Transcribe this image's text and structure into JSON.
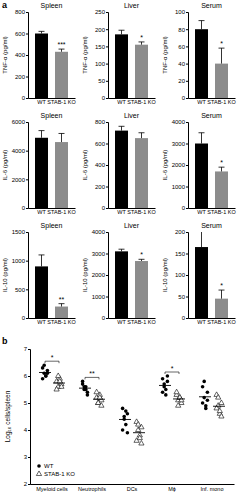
{
  "chart_data": [
    {
      "type": "bar",
      "title": "Spleen",
      "y_label": "TNF-α (pg/ml)",
      "categories": [
        "WT",
        "STAB-1 KO"
      ],
      "values": [
        600,
        430
      ],
      "errors": [
        20,
        25
      ],
      "colors": [
        "#000000",
        "#8c8c8c"
      ],
      "ylim": [
        0,
        800
      ],
      "yticks": [
        0,
        200,
        400,
        600,
        800
      ],
      "annotations": [
        {
          "text": "a"
        },
        {
          "text": "***",
          "category": "STAB-1 KO"
        }
      ]
    },
    {
      "type": "bar",
      "title": "Liver",
      "y_label": "TNF-α (pg/ml)",
      "categories": [
        "WT",
        "STAB-1 KO"
      ],
      "values": [
        185,
        155
      ],
      "errors": [
        12,
        8
      ],
      "colors": [
        "#000000",
        "#8c8c8c"
      ],
      "ylim": [
        0,
        250
      ],
      "yticks": [
        0,
        50,
        100,
        150,
        200,
        250
      ],
      "annotations": [
        {
          "text": "*",
          "category": "STAB-1 KO"
        }
      ]
    },
    {
      "type": "bar",
      "title": "Serum",
      "y_label": "TNF-α (pg/ml)",
      "categories": [
        "WT",
        "STAB-1 KO"
      ],
      "values": [
        80,
        40
      ],
      "errors": [
        10,
        18
      ],
      "colors": [
        "#000000",
        "#8c8c8c"
      ],
      "ylim": [
        0,
        100
      ],
      "yticks": [
        0,
        20,
        40,
        60,
        80,
        100
      ],
      "annotations": [
        {
          "text": "*",
          "category": "STAB-1 KO"
        }
      ]
    },
    {
      "type": "bar",
      "title": "Spleen",
      "y_label": "IL-6 (pg/ml)",
      "categories": [
        "WT",
        "STAB-1 KO"
      ],
      "values": [
        4900,
        4600
      ],
      "errors": [
        500,
        600
      ],
      "colors": [
        "#000000",
        "#8c8c8c"
      ],
      "ylim": [
        0,
        6000
      ],
      "yticks": [
        0,
        2000,
        4000,
        6000
      ],
      "annotations": []
    },
    {
      "type": "bar",
      "title": "Liver",
      "y_label": "IL-6 (pg/ml)",
      "categories": [
        "WT",
        "STAB-1 KO"
      ],
      "values": [
        720,
        650
      ],
      "errors": [
        40,
        50
      ],
      "colors": [
        "#000000",
        "#8c8c8c"
      ],
      "ylim": [
        0,
        800
      ],
      "yticks": [
        0,
        200,
        400,
        600,
        800
      ],
      "annotations": []
    },
    {
      "type": "bar",
      "title": "Serum",
      "y_label": "IL-6 (pg/ml)",
      "categories": [
        "WT",
        "STAB-1 KO"
      ],
      "values": [
        3000,
        1700
      ],
      "errors": [
        500,
        200
      ],
      "colors": [
        "#000000",
        "#8c8c8c"
      ],
      "ylim": [
        0,
        4000
      ],
      "yticks": [
        0,
        1000,
        2000,
        3000,
        4000
      ],
      "annotations": [
        {
          "text": "*",
          "category": "STAB-1 KO"
        }
      ]
    },
    {
      "type": "bar",
      "title": "Spleen",
      "y_label": "IL-10 (pg/ml)",
      "categories": [
        "WT",
        "STAB-1 KO"
      ],
      "values": [
        900,
        200
      ],
      "errors": [
        200,
        50
      ],
      "colors": [
        "#000000",
        "#8c8c8c"
      ],
      "ylim": [
        0,
        1500
      ],
      "yticks": [
        0,
        500,
        1000,
        1500
      ],
      "annotations": [
        {
          "text": "**",
          "category": "STAB-1 KO"
        }
      ]
    },
    {
      "type": "bar",
      "title": "Liver",
      "y_label": "IL-10 (pg/ml)",
      "categories": [
        "WT",
        "STAB-1 KO"
      ],
      "values": [
        3100,
        2650
      ],
      "errors": [
        100,
        80
      ],
      "colors": [
        "#000000",
        "#8c8c8c"
      ],
      "ylim": [
        0,
        4000
      ],
      "yticks": [
        0,
        1000,
        2000,
        3000,
        4000
      ],
      "annotations": [
        {
          "text": "*",
          "category": "STAB-1 KO"
        }
      ]
    },
    {
      "type": "bar",
      "title": "Serum",
      "y_label": "IL-10 (pg/ml)",
      "categories": [
        "WT",
        "STAB-1 KO"
      ],
      "values": [
        165,
        45
      ],
      "errors": [
        40,
        20
      ],
      "colors": [
        "#000000",
        "#8c8c8c"
      ],
      "ylim": [
        0,
        200
      ],
      "yticks": [
        0,
        50,
        100,
        150,
        200
      ],
      "annotations": [
        {
          "text": "*",
          "category": "STAB-1 KO"
        }
      ]
    },
    {
      "type": "scatter",
      "y_label": "Log₁₀ cells/spleen",
      "categories": [
        "Myeloid cells",
        "Neutrophils",
        "DCs",
        "Mϕ",
        "Inf. mono"
      ],
      "series": [
        {
          "name": "WT",
          "color": "#000000",
          "marker": "circle",
          "values": [
            [
              6.3,
              6.1,
              6.0,
              6.2,
              5.9,
              6.4,
              6.0,
              6.1
            ],
            [
              5.7,
              5.5,
              5.6,
              5.4,
              5.8,
              5.6,
              5.5,
              5.3
            ],
            [
              4.8,
              4.5,
              4.2,
              4.6,
              4.0,
              4.4,
              4.7,
              3.9
            ],
            [
              5.9,
              5.6,
              5.5,
              5.8,
              5.4,
              5.7,
              5.3,
              6.0
            ],
            [
              5.6,
              5.2,
              4.8,
              5.4,
              5.0,
              5.8,
              4.9,
              5.1
            ]
          ],
          "means": [
            6.13,
            5.55,
            4.39,
            5.65,
            5.23
          ]
        },
        {
          "name": "STAB-1 KO",
          "color": "#000000",
          "marker": "triangle",
          "values": [
            [
              5.8,
              5.6,
              5.9,
              5.7,
              5.5,
              6.0,
              5.8,
              5.6
            ],
            [
              5.2,
              5.0,
              5.3,
              5.1,
              5.4,
              5.0,
              5.2,
              4.9
            ],
            [
              4.3,
              4.0,
              3.8,
              4.1,
              3.6,
              4.2,
              3.7,
              3.5
            ],
            [
              5.3,
              5.1,
              5.2,
              5.0,
              5.4,
              4.9,
              5.2,
              5.1
            ],
            [
              5.3,
              4.9,
              4.6,
              5.0,
              4.8,
              5.2,
              4.7,
              4.5
            ]
          ],
          "means": [
            5.74,
            5.14,
            3.9,
            5.15,
            4.88
          ]
        }
      ],
      "ylim": [
        2,
        7
      ],
      "yticks": [
        2,
        3,
        4,
        5,
        6,
        7
      ],
      "legend": "lower left",
      "annotations": [
        {
          "text": "b"
        },
        {
          "text": "*",
          "category": "Myeloid cells"
        },
        {
          "text": "**",
          "category": "Neutrophils"
        },
        {
          "text": "*",
          "category": "Mϕ"
        }
      ]
    }
  ]
}
